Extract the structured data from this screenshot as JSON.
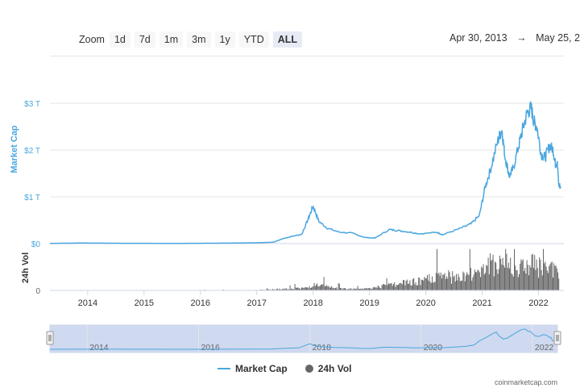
{
  "zoom": {
    "label": "Zoom",
    "buttons": [
      "1d",
      "7d",
      "1m",
      "3m",
      "1y",
      "YTD",
      "ALL"
    ],
    "active": "ALL"
  },
  "range": {
    "from": "Apr 30, 2013",
    "arrow": "→",
    "to": "May 25, 2"
  },
  "legend": {
    "market_cap": "Market Cap",
    "volume": "24h Vol"
  },
  "credit": "coinmarketcap.com",
  "colors": {
    "market_cap": "#4aa6df",
    "volume": "#666666",
    "navigator_fill": "#cfd9ef"
  },
  "chart_data": {
    "type": "line",
    "x_axis": {
      "ticks": [
        "2014",
        "2015",
        "2016",
        "2017",
        "2018",
        "2019",
        "2020",
        "2021",
        "2022"
      ]
    },
    "y_axis": {
      "label": "Market Cap",
      "ticks": [
        "$0",
        "$1 T",
        "$2 T",
        "$3 T"
      ],
      "range": [
        0,
        3.0
      ],
      "unit": "trillion USD"
    },
    "volume_axis": {
      "label": "24h Vol",
      "ticks": [
        "0"
      ]
    },
    "navigator_ticks": [
      "2014",
      "2016",
      "2018",
      "2020",
      "2022"
    ],
    "series": [
      {
        "name": "Market Cap",
        "x": [
          2013.33,
          2013.9,
          2014.5,
          2015.5,
          2016.5,
          2017.0,
          2017.3,
          2017.45,
          2017.6,
          2017.8,
          2017.92,
          2018.0,
          2018.1,
          2018.25,
          2018.45,
          2018.7,
          2018.92,
          2019.1,
          2019.35,
          2019.5,
          2019.7,
          2019.9,
          2020.2,
          2020.3,
          2020.6,
          2020.8,
          2020.95,
          2021.05,
          2021.15,
          2021.28,
          2021.35,
          2021.4,
          2021.48,
          2021.55,
          2021.65,
          2021.72,
          2021.8,
          2021.87,
          2021.92,
          2021.97,
          2022.05,
          2022.12,
          2022.2,
          2022.26,
          2022.3,
          2022.33,
          2022.36,
          2022.39
        ],
        "values": [
          0.005,
          0.012,
          0.008,
          0.005,
          0.01,
          0.018,
          0.03,
          0.1,
          0.15,
          0.2,
          0.55,
          0.8,
          0.48,
          0.33,
          0.25,
          0.22,
          0.13,
          0.12,
          0.3,
          0.28,
          0.25,
          0.21,
          0.24,
          0.19,
          0.32,
          0.42,
          0.6,
          1.2,
          1.6,
          2.2,
          2.45,
          1.9,
          1.45,
          1.6,
          2.1,
          2.45,
          2.8,
          2.9,
          2.6,
          2.5,
          1.9,
          1.85,
          2.1,
          2.0,
          1.7,
          1.75,
          1.25,
          1.22
        ]
      },
      {
        "name": "24h Vol",
        "x": [
          2013.33,
          2017.0,
          2017.9,
          2018.0,
          2018.5,
          2019.0,
          2019.3,
          2019.6,
          2020.0,
          2020.3,
          2020.6,
          2021.0,
          2021.3,
          2021.6,
          2021.9,
          2022.1,
          2022.39
        ],
        "values": [
          0.0,
          0.002,
          0.015,
          0.03,
          0.01,
          0.01,
          0.03,
          0.04,
          0.06,
          0.08,
          0.07,
          0.12,
          0.17,
          0.12,
          0.15,
          0.12,
          0.1
        ],
        "unit": "trillion USD (relative)"
      }
    ]
  }
}
